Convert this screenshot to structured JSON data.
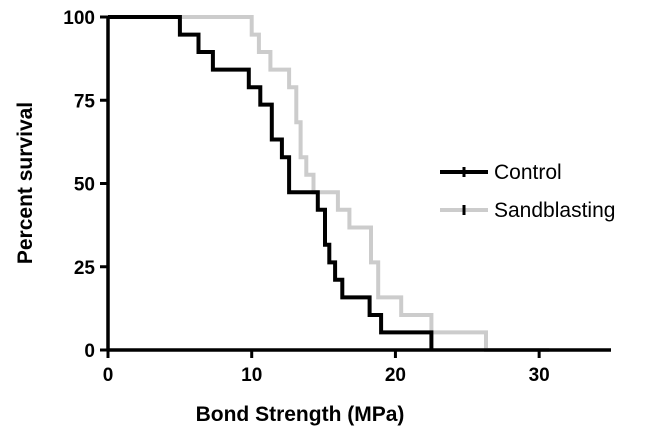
{
  "chart_data": {
    "type": "line",
    "step": true,
    "xlabel": "Bond Strength (MPa)",
    "ylabel": "Percent survival",
    "xlim": [
      0,
      35
    ],
    "ylim": [
      0,
      100
    ],
    "xticks": [
      "0",
      "10",
      "20",
      "30"
    ],
    "yticks": [
      "0",
      "25",
      "50",
      "75",
      "100"
    ],
    "grid": false,
    "legend_position": "right",
    "series": [
      {
        "name": "Control",
        "color": "#000000",
        "x": [
          0,
          5.0,
          5.0,
          6.3,
          6.3,
          7.3,
          7.3,
          9.8,
          9.8,
          10.6,
          10.6,
          11.4,
          11.4,
          12.1,
          12.1,
          12.6,
          12.6,
          14.6,
          14.6,
          15.1,
          15.1,
          15.4,
          15.4,
          15.8,
          15.8,
          16.3,
          16.3,
          18.2,
          18.2,
          19.0,
          19.0,
          22.5,
          22.5
        ],
        "y": [
          100,
          100,
          94.7,
          94.7,
          89.5,
          89.5,
          84.2,
          84.2,
          78.9,
          78.9,
          73.7,
          73.7,
          63.2,
          63.2,
          57.9,
          57.9,
          47.4,
          47.4,
          42.1,
          42.1,
          31.6,
          31.6,
          26.3,
          26.3,
          21.1,
          21.1,
          15.8,
          15.8,
          10.5,
          10.5,
          5.3,
          5.3,
          0
        ]
      },
      {
        "name": "Sandblasting",
        "color": "#cccccc",
        "x": [
          0,
          10.0,
          10.0,
          10.5,
          10.5,
          11.3,
          11.3,
          12.6,
          12.6,
          13.1,
          13.1,
          13.4,
          13.4,
          13.8,
          13.8,
          14.3,
          14.3,
          16.0,
          16.0,
          16.8,
          16.8,
          18.3,
          18.3,
          18.8,
          18.8,
          19.2,
          19.2,
          20.4,
          20.4,
          22.5,
          22.5,
          26.3,
          26.3,
          30.7,
          30.7
        ],
        "y": [
          100,
          100,
          94.7,
          94.7,
          89.5,
          89.5,
          84.2,
          84.2,
          78.9,
          78.9,
          68.4,
          68.4,
          57.9,
          57.9,
          52.6,
          52.6,
          47.4,
          47.4,
          42.1,
          42.1,
          36.8,
          36.8,
          26.3,
          26.3,
          15.8,
          15.8,
          15.8,
          15.8,
          10.5,
          10.5,
          5.3,
          5.3,
          0,
          0,
          0
        ]
      }
    ]
  }
}
